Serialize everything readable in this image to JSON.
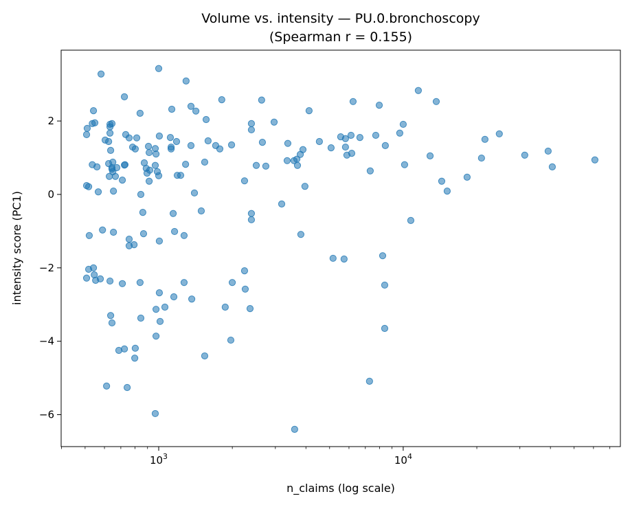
{
  "chart_data": {
    "type": "scatter",
    "title": "Volume vs. intensity — PU.0.bronchoscopy",
    "subtitle": "(Spearman r = 0.155)",
    "xlabel": "n_claims (log scale)",
    "ylabel": "intensity score (PC1)",
    "xscale": "log",
    "xlim": [
      399,
      77300
    ],
    "ylim": [
      -6.87,
      3.93
    ],
    "grid": false,
    "legend": "none",
    "color": "#1f77b4",
    "x_ticks": [
      {
        "value": 1000,
        "base": "10",
        "exp": "3"
      },
      {
        "value": 10000,
        "base": "10",
        "exp": "4"
      }
    ],
    "y_ticks": [
      {
        "value": -6,
        "label": "−6"
      },
      {
        "value": -4,
        "label": "−4"
      },
      {
        "value": -2,
        "label": "−2"
      },
      {
        "value": 0,
        "label": "0"
      },
      {
        "value": 2,
        "label": "2"
      }
    ],
    "points": [
      [
        507,
        1.63
      ],
      [
        510,
        1.8
      ],
      [
        507,
        0.24
      ],
      [
        517,
        0.21
      ],
      [
        520,
        -1.12
      ],
      [
        507,
        -2.28
      ],
      [
        517,
        -2.04
      ],
      [
        535,
        1.93
      ],
      [
        548,
        1.95
      ],
      [
        541,
        2.28
      ],
      [
        535,
        0.81
      ],
      [
        559,
        0.75
      ],
      [
        566,
        0.07
      ],
      [
        581,
        3.28
      ],
      [
        589,
        -0.97
      ],
      [
        604,
        1.48
      ],
      [
        624,
        0.84
      ],
      [
        632,
        1.84
      ],
      [
        632,
        1.91
      ],
      [
        644,
        1.93
      ],
      [
        632,
        1.67
      ],
      [
        624,
        1.44
      ],
      [
        636,
        1.2
      ],
      [
        644,
        0.69
      ],
      [
        649,
        0.88
      ],
      [
        644,
        0.73
      ],
      [
        628,
        0.49
      ],
      [
        674,
        0.73
      ],
      [
        665,
        0.49
      ],
      [
        710,
        0.39
      ],
      [
        724,
        2.66
      ],
      [
        733,
        1.63
      ],
      [
        728,
        0.81
      ],
      [
        724,
        0.8
      ],
      [
        757,
        1.54
      ],
      [
        782,
        1.29
      ],
      [
        802,
        1.24
      ],
      [
        813,
        1.54
      ],
      [
        839,
        2.21
      ],
      [
        845,
        0.0
      ],
      [
        861,
        -0.49
      ],
      [
        873,
        0.86
      ],
      [
        889,
        0.71
      ],
      [
        908,
        1.31
      ],
      [
        914,
        1.14
      ],
      [
        914,
        0.36
      ],
      [
        919,
        0.66
      ],
      [
        896,
        0.58
      ],
      [
        968,
        1.25
      ],
      [
        975,
        1.1
      ],
      [
        987,
        0.62
      ],
      [
        1006,
        1.59
      ],
      [
        1000,
        0.51
      ],
      [
        968,
        0.79
      ],
      [
        1000,
        3.43
      ],
      [
        653,
        0.09
      ],
      [
        649,
        0.62
      ],
      [
        757,
        -1.22
      ],
      [
        757,
        -1.4
      ],
      [
        793,
        -1.37
      ],
      [
        653,
        -1.03
      ],
      [
        867,
        -1.07
      ],
      [
        1006,
        -1.27
      ],
      [
        541,
        -2.0
      ],
      [
        545,
        -2.19
      ],
      [
        552,
        -2.34
      ],
      [
        577,
        -2.3
      ],
      [
        632,
        -2.36
      ],
      [
        710,
        -2.43
      ],
      [
        839,
        -2.4
      ],
      [
        636,
        -3.3
      ],
      [
        644,
        -3.5
      ],
      [
        845,
        -3.37
      ],
      [
        1006,
        -2.68
      ],
      [
        975,
        -3.13
      ],
      [
        1013,
        -3.46
      ],
      [
        1060,
        -3.07
      ],
      [
        687,
        -4.25
      ],
      [
        724,
        -4.21
      ],
      [
        802,
        -4.19
      ],
      [
        798,
        -4.46
      ],
      [
        612,
        -5.22
      ],
      [
        743,
        -5.26
      ],
      [
        975,
        -3.86
      ],
      [
        968,
        -5.97
      ],
      [
        1131,
        2.32
      ],
      [
        1124,
        1.29
      ],
      [
        1116,
        1.55
      ],
      [
        1124,
        1.24
      ],
      [
        1146,
        -0.52
      ],
      [
        1161,
        -1.01
      ],
      [
        1183,
        1.44
      ],
      [
        1191,
        0.52
      ],
      [
        1230,
        0.52
      ],
      [
        1270,
        -1.12
      ],
      [
        1288,
        0.82
      ],
      [
        1294,
        3.09
      ],
      [
        1355,
        1.33
      ],
      [
        1355,
        2.4
      ],
      [
        1419,
        2.27
      ],
      [
        1400,
        0.04
      ],
      [
        1493,
        -0.45
      ],
      [
        1542,
        0.88
      ],
      [
        1563,
        2.04
      ],
      [
        1592,
        1.46
      ],
      [
        1710,
        1.33
      ],
      [
        1778,
        1.24
      ],
      [
        1811,
        2.58
      ],
      [
        1270,
        -2.4
      ],
      [
        1153,
        -2.79
      ],
      [
        1365,
        -2.85
      ],
      [
        1542,
        -4.4
      ],
      [
        1986,
        1.35
      ],
      [
        2244,
        -2.08
      ],
      [
        2259,
        -2.58
      ],
      [
        2394,
        1.93
      ],
      [
        2394,
        1.76
      ],
      [
        2394,
        -0.52
      ],
      [
        2394,
        -0.69
      ],
      [
        2364,
        -3.11
      ],
      [
        2506,
        0.79
      ],
      [
        2655,
        1.42
      ],
      [
        2636,
        2.57
      ],
      [
        2742,
        0.77
      ],
      [
        1972,
        -3.97
      ],
      [
        1871,
        -3.07
      ],
      [
        1999,
        -2.4
      ],
      [
        2244,
        0.37
      ],
      [
        2965,
        1.97
      ],
      [
        3184,
        -0.26
      ],
      [
        3352,
        0.92
      ],
      [
        3373,
        1.39
      ],
      [
        3575,
        0.92
      ],
      [
        3672,
        0.96
      ],
      [
        3694,
        0.79
      ],
      [
        3793,
        1.09
      ],
      [
        3890,
        1.22
      ],
      [
        3963,
        0.22
      ],
      [
        4121,
        2.28
      ],
      [
        3814,
        -1.09
      ],
      [
        3597,
        -6.4
      ],
      [
        4541,
        1.44
      ],
      [
        5070,
        1.27
      ],
      [
        5165,
        -1.74
      ],
      [
        5550,
        1.57
      ],
      [
        5730,
        -1.76
      ],
      [
        5806,
        1.52
      ],
      [
        5806,
        1.29
      ],
      [
        5883,
        1.07
      ],
      [
        6117,
        1.61
      ],
      [
        6158,
        1.12
      ],
      [
        6237,
        2.53
      ],
      [
        6651,
        1.55
      ],
      [
        7330,
        0.64
      ],
      [
        7280,
        -5.09
      ],
      [
        7722,
        1.61
      ],
      [
        7980,
        2.43
      ],
      [
        8240,
        -1.67
      ],
      [
        8400,
        -2.47
      ],
      [
        8400,
        -3.65
      ],
      [
        8450,
        1.33
      ],
      [
        9680,
        1.67
      ],
      [
        10000,
        1.91
      ],
      [
        10130,
        0.81
      ],
      [
        10740,
        -0.71
      ],
      [
        11530,
        2.83
      ],
      [
        12880,
        1.05
      ],
      [
        13650,
        2.53
      ],
      [
        14370,
        0.36
      ],
      [
        15130,
        0.09
      ],
      [
        18250,
        0.47
      ],
      [
        20900,
        0.99
      ],
      [
        21590,
        1.5
      ],
      [
        24720,
        1.65
      ],
      [
        31410,
        1.07
      ],
      [
        39150,
        1.18
      ],
      [
        40710,
        0.75
      ],
      [
        60800,
        0.94
      ]
    ]
  }
}
